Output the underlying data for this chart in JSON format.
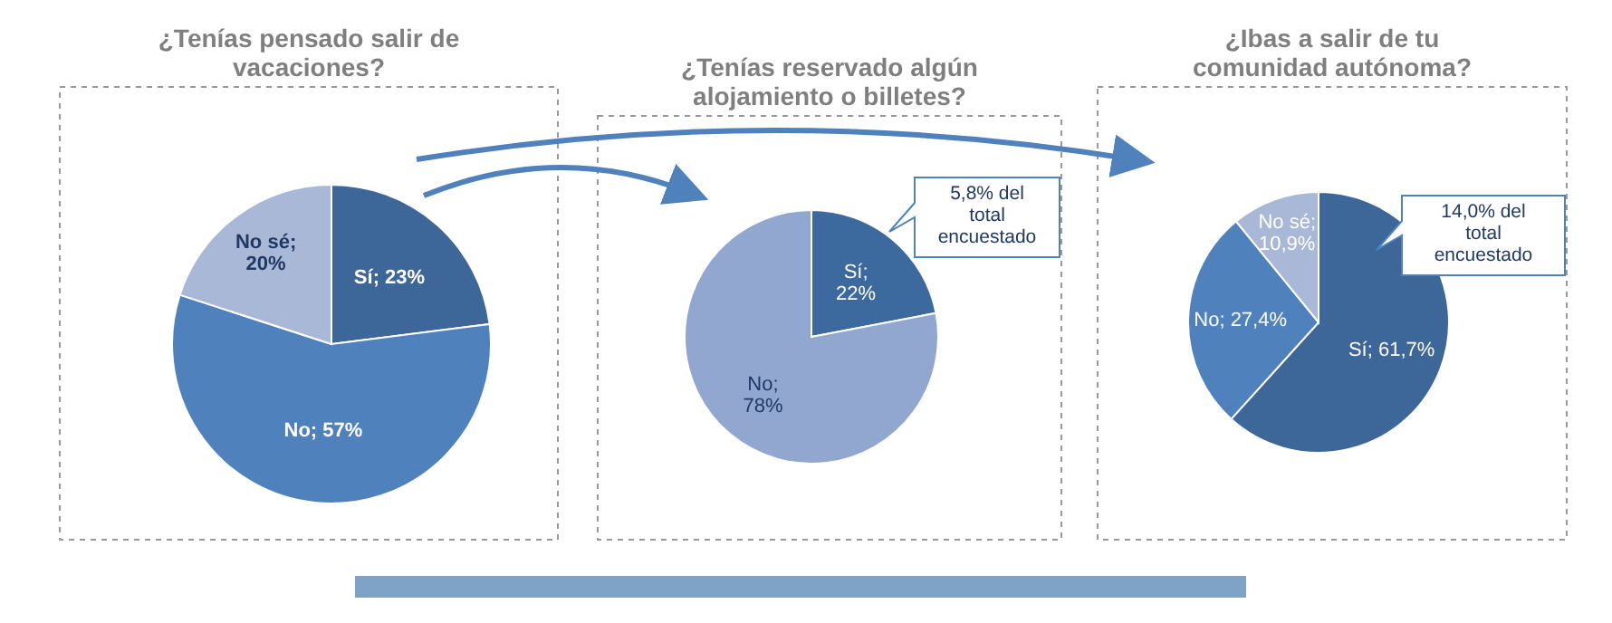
{
  "chart_data": [
    {
      "type": "pie",
      "title": "¿Tenías pensado salir de vacaciones?",
      "categories": [
        "Sí",
        "No",
        "No sé"
      ],
      "values": [
        23,
        57,
        20
      ],
      "colors": [
        "#3d6699",
        "#4f81bd",
        "#a9b8d6"
      ],
      "value_labels": [
        "; 23%",
        "; 57%",
        "; 20%"
      ],
      "data_labels": true
    },
    {
      "type": "pie",
      "title": "¿Tenías reservado algún alojamiento o billetes?",
      "categories": [
        "Sí",
        "No"
      ],
      "values": [
        22,
        78
      ],
      "colors": [
        "#3d6a9e",
        "#91a7d0"
      ],
      "value_labels": [
        "; 22%",
        "; 78%"
      ],
      "data_labels": true,
      "annotations": [
        "5,8% del total encuestado"
      ]
    },
    {
      "type": "pie",
      "title": "¿Ibas a salir de tu comunidad autónoma?",
      "categories": [
        "Sí",
        "No",
        "No sé"
      ],
      "values": [
        61.7,
        27.4,
        10.9
      ],
      "colors": [
        "#3d6699",
        "#4f81bd",
        "#a9b8d6"
      ],
      "value_labels": [
        "; 61,7%",
        "; 27,4%",
        "; 10,9%"
      ],
      "data_labels": true,
      "annotations": [
        "14,0% del total encuestado"
      ]
    }
  ]
}
